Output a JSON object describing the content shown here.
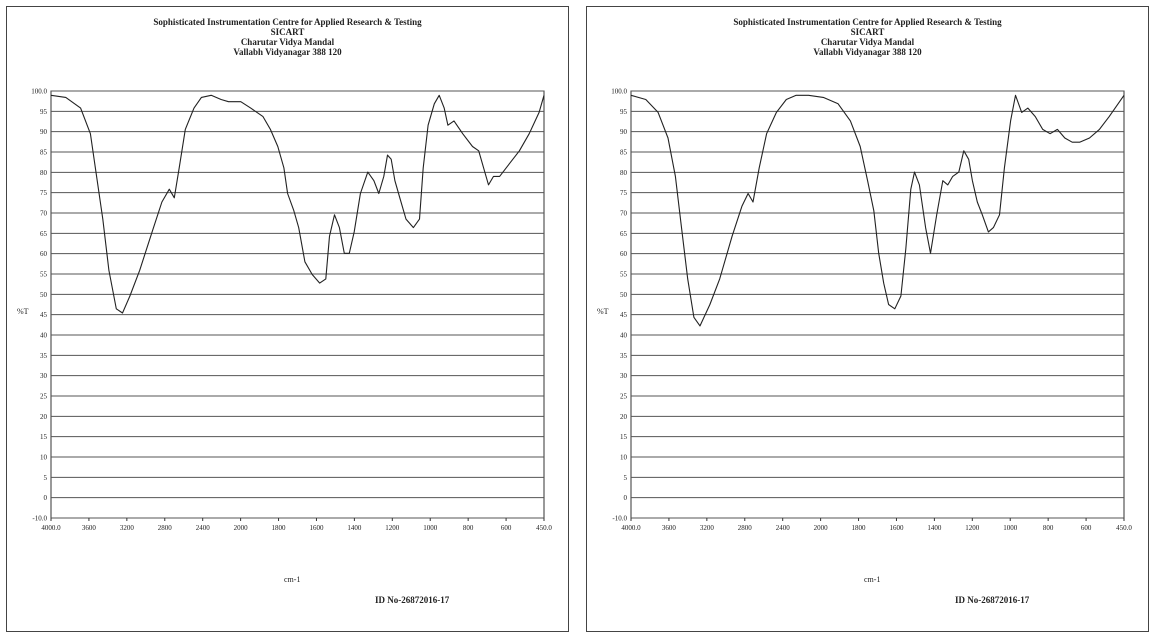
{
  "chart_data": [
    {
      "type": "line",
      "header": [
        "Sophisticated Instrumentation Centre for Applied Research & Testing",
        "SICART",
        "Charutar Vidya Mandal",
        "Vallabh Vidyanagar 388 120"
      ],
      "xlabel": "cm-1",
      "ylabel": "%T",
      "sample_id": "ID No-26872016-17",
      "x_ticks": [
        "4000.0",
        "3600",
        "3200",
        "2800",
        "2400",
        "2000",
        "1800",
        "1600",
        "1400",
        "1200",
        "1000",
        "800",
        "600",
        "450.0"
      ],
      "y_ticks": [
        "-10.0",
        "0",
        "5",
        "10",
        "15",
        "20",
        "25",
        "30",
        "35",
        "40",
        "45",
        "50",
        "55",
        "60",
        "65",
        "70",
        "75",
        "80",
        "85",
        "90",
        "95",
        "100.0"
      ],
      "series": [
        {
          "points": [
            [
              0,
              0.99
            ],
            [
              0.6,
              0.985
            ],
            [
              1.2,
              0.96
            ],
            [
              1.6,
              0.9
            ],
            [
              1.85,
              0.8
            ],
            [
              2.1,
              0.7
            ],
            [
              2.35,
              0.58
            ],
            [
              2.65,
              0.49
            ],
            [
              2.9,
              0.48
            ],
            [
              3.2,
              0.52
            ],
            [
              3.6,
              0.58
            ],
            [
              4.1,
              0.67
            ],
            [
              4.5,
              0.74
            ],
            [
              4.8,
              0.77
            ],
            [
              5.0,
              0.75
            ],
            [
              5.2,
              0.82
            ],
            [
              5.45,
              0.91
            ],
            [
              5.8,
              0.96
            ],
            [
              6.1,
              0.985
            ],
            [
              6.5,
              0.99
            ],
            [
              6.9,
              0.98
            ],
            [
              7.2,
              0.975
            ],
            [
              7.7,
              0.975
            ],
            [
              8.1,
              0.96
            ],
            [
              8.6,
              0.94
            ],
            [
              8.9,
              0.91
            ],
            [
              9.2,
              0.87
            ],
            [
              9.45,
              0.82
            ],
            [
              9.6,
              0.76
            ],
            [
              9.85,
              0.72
            ],
            [
              10.05,
              0.68
            ],
            [
              10.3,
              0.6
            ],
            [
              10.6,
              0.57
            ],
            [
              10.9,
              0.55
            ],
            [
              11.15,
              0.56
            ],
            [
              11.3,
              0.66
            ],
            [
              11.5,
              0.71
            ],
            [
              11.7,
              0.68
            ],
            [
              11.9,
              0.62
            ],
            [
              12.1,
              0.62
            ],
            [
              12.3,
              0.67
            ],
            [
              12.55,
              0.76
            ],
            [
              12.85,
              0.81
            ],
            [
              13.1,
              0.79
            ],
            [
              13.3,
              0.76
            ],
            [
              13.5,
              0.8
            ],
            [
              13.65,
              0.85
            ],
            [
              13.8,
              0.84
            ],
            [
              13.95,
              0.79
            ],
            [
              14.15,
              0.75
            ],
            [
              14.4,
              0.7
            ],
            [
              14.7,
              0.68
            ],
            [
              14.95,
              0.7
            ],
            [
              15.1,
              0.82
            ],
            [
              15.3,
              0.92
            ],
            [
              15.55,
              0.97
            ],
            [
              15.75,
              0.99
            ],
            [
              15.95,
              0.96
            ],
            [
              16.1,
              0.92
            ],
            [
              16.35,
              0.93
            ],
            [
              16.7,
              0.9
            ],
            [
              17.1,
              0.87
            ],
            [
              17.35,
              0.86
            ],
            [
              17.55,
              0.82
            ],
            [
              17.75,
              0.78
            ],
            [
              17.95,
              0.8
            ],
            [
              18.2,
              0.8
            ],
            [
              18.6,
              0.83
            ],
            [
              19.0,
              0.86
            ],
            [
              19.4,
              0.9
            ],
            [
              19.8,
              0.95
            ],
            [
              20,
              0.99
            ]
          ]
        }
      ]
    },
    {
      "type": "line",
      "header": [
        "Sophisticated Instrumentation Centre for Applied Research & Testing",
        "SICART",
        "Charutar Vidya Mandal",
        "Vallabh Vidyanagar 388 120"
      ],
      "xlabel": "cm-1",
      "ylabel": "%T",
      "sample_id": "ID No-26872016-17",
      "x_ticks": [
        "4000.0",
        "3600",
        "3200",
        "2800",
        "2400",
        "2000",
        "1800",
        "1600",
        "1400",
        "1200",
        "1000",
        "800",
        "600",
        "450.0"
      ],
      "y_ticks": [
        "-10.0",
        "0",
        "5",
        "10",
        "15",
        "20",
        "25",
        "30",
        "35",
        "40",
        "45",
        "50",
        "55",
        "60",
        "65",
        "70",
        "75",
        "80",
        "85",
        "90",
        "95",
        "100.0"
      ],
      "series": [
        {
          "points": [
            [
              0,
              0.99
            ],
            [
              0.6,
              0.98
            ],
            [
              1.1,
              0.95
            ],
            [
              1.5,
              0.89
            ],
            [
              1.8,
              0.8
            ],
            [
              2.05,
              0.68
            ],
            [
              2.3,
              0.56
            ],
            [
              2.55,
              0.47
            ],
            [
              2.8,
              0.45
            ],
            [
              3.2,
              0.5
            ],
            [
              3.6,
              0.56
            ],
            [
              4.1,
              0.66
            ],
            [
              4.5,
              0.73
            ],
            [
              4.75,
              0.76
            ],
            [
              4.95,
              0.74
            ],
            [
              5.2,
              0.82
            ],
            [
              5.5,
              0.9
            ],
            [
              5.9,
              0.95
            ],
            [
              6.3,
              0.98
            ],
            [
              6.7,
              0.99
            ],
            [
              7.2,
              0.99
            ],
            [
              7.8,
              0.985
            ],
            [
              8.4,
              0.97
            ],
            [
              8.9,
              0.93
            ],
            [
              9.3,
              0.87
            ],
            [
              9.6,
              0.79
            ],
            [
              9.85,
              0.72
            ],
            [
              10.05,
              0.62
            ],
            [
              10.25,
              0.55
            ],
            [
              10.45,
              0.5
            ],
            [
              10.7,
              0.49
            ],
            [
              10.95,
              0.52
            ],
            [
              11.15,
              0.63
            ],
            [
              11.35,
              0.77
            ],
            [
              11.5,
              0.81
            ],
            [
              11.7,
              0.78
            ],
            [
              11.95,
              0.68
            ],
            [
              12.15,
              0.62
            ],
            [
              12.4,
              0.71
            ],
            [
              12.65,
              0.79
            ],
            [
              12.85,
              0.78
            ],
            [
              13.05,
              0.8
            ],
            [
              13.3,
              0.81
            ],
            [
              13.5,
              0.86
            ],
            [
              13.7,
              0.84
            ],
            [
              13.85,
              0.79
            ],
            [
              14.05,
              0.74
            ],
            [
              14.25,
              0.71
            ],
            [
              14.5,
              0.67
            ],
            [
              14.7,
              0.68
            ],
            [
              14.95,
              0.71
            ],
            [
              15.15,
              0.82
            ],
            [
              15.4,
              0.93
            ],
            [
              15.6,
              0.99
            ],
            [
              15.85,
              0.95
            ],
            [
              16.1,
              0.96
            ],
            [
              16.4,
              0.94
            ],
            [
              16.7,
              0.91
            ],
            [
              17.0,
              0.9
            ],
            [
              17.3,
              0.91
            ],
            [
              17.6,
              0.89
            ],
            [
              17.9,
              0.88
            ],
            [
              18.2,
              0.88
            ],
            [
              18.6,
              0.89
            ],
            [
              19.0,
              0.91
            ],
            [
              19.4,
              0.94
            ],
            [
              20,
              0.99
            ]
          ]
        }
      ]
    }
  ]
}
